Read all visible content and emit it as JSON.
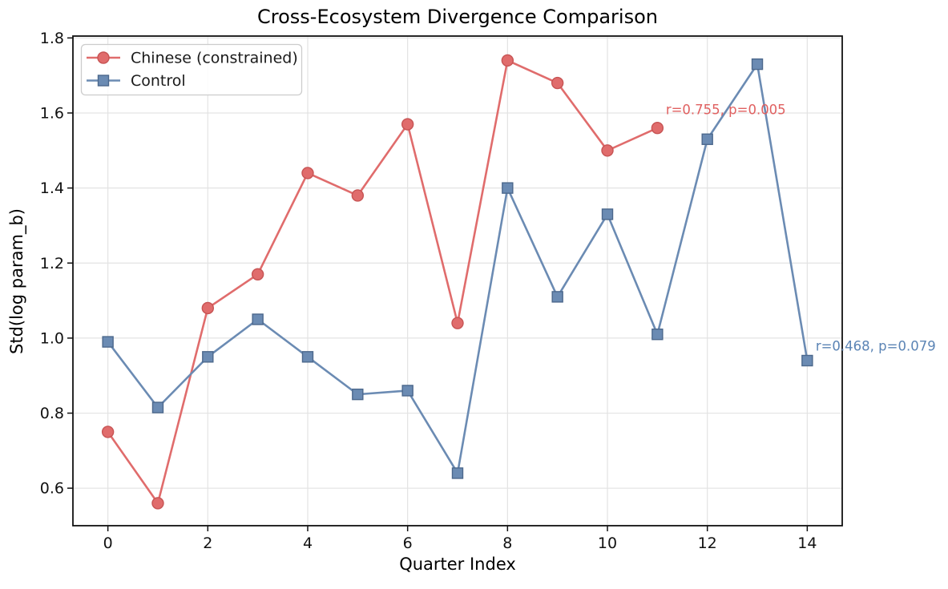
{
  "chart_data": {
    "type": "line",
    "title": "Cross-Ecosystem Divergence Comparison",
    "xlabel": "Quarter Index",
    "ylabel": "Std(log param_b)",
    "xlim": [
      -0.7,
      14.7
    ],
    "ylim": [
      0.5,
      1.805
    ],
    "xticks": [
      0,
      2,
      4,
      6,
      8,
      10,
      12,
      14
    ],
    "xtick_labels": [
      "0",
      "2",
      "4",
      "6",
      "8",
      "10",
      "12",
      "14"
    ],
    "yticks": [
      0.6,
      0.8,
      1.0,
      1.2,
      1.4,
      1.6,
      1.8
    ],
    "ytick_labels": [
      "0.6",
      "0.8",
      "1.0",
      "1.2",
      "1.4",
      "1.6",
      "1.8"
    ],
    "grid": true,
    "legend_position": "upper left",
    "series": [
      {
        "name": "Chinese (constrained)",
        "marker": "circle",
        "color": "#e06c6c",
        "edge_color": "#c75454",
        "x": [
          0,
          1,
          2,
          3,
          4,
          5,
          6,
          7,
          8,
          9,
          10,
          11
        ],
        "y": [
          0.75,
          0.56,
          1.08,
          1.17,
          1.44,
          1.38,
          1.57,
          1.04,
          1.74,
          1.68,
          1.5,
          1.56
        ]
      },
      {
        "name": "Control",
        "marker": "square",
        "color": "#6b8bb3",
        "edge_color": "#4c688c",
        "x": [
          0,
          1,
          2,
          3,
          4,
          5,
          6,
          7,
          8,
          9,
          10,
          11,
          12,
          13,
          14
        ],
        "y": [
          0.99,
          0.815,
          0.95,
          1.05,
          0.95,
          0.85,
          0.86,
          0.64,
          1.4,
          1.11,
          1.33,
          1.01,
          1.53,
          1.73,
          0.94
        ]
      }
    ],
    "annotations": [
      {
        "text": "r=0.755, p=0.005",
        "x": 12.37,
        "y": 1.61,
        "color": "#e06060"
      },
      {
        "text": "r=0.468, p=0.079",
        "x": 15.37,
        "y": 0.98,
        "color": "#5b84b5"
      }
    ],
    "colors": {
      "grid": "#e3e3e3",
      "spine": "#111111",
      "tick_label": "#111111",
      "legend_border": "#cccccc"
    }
  }
}
